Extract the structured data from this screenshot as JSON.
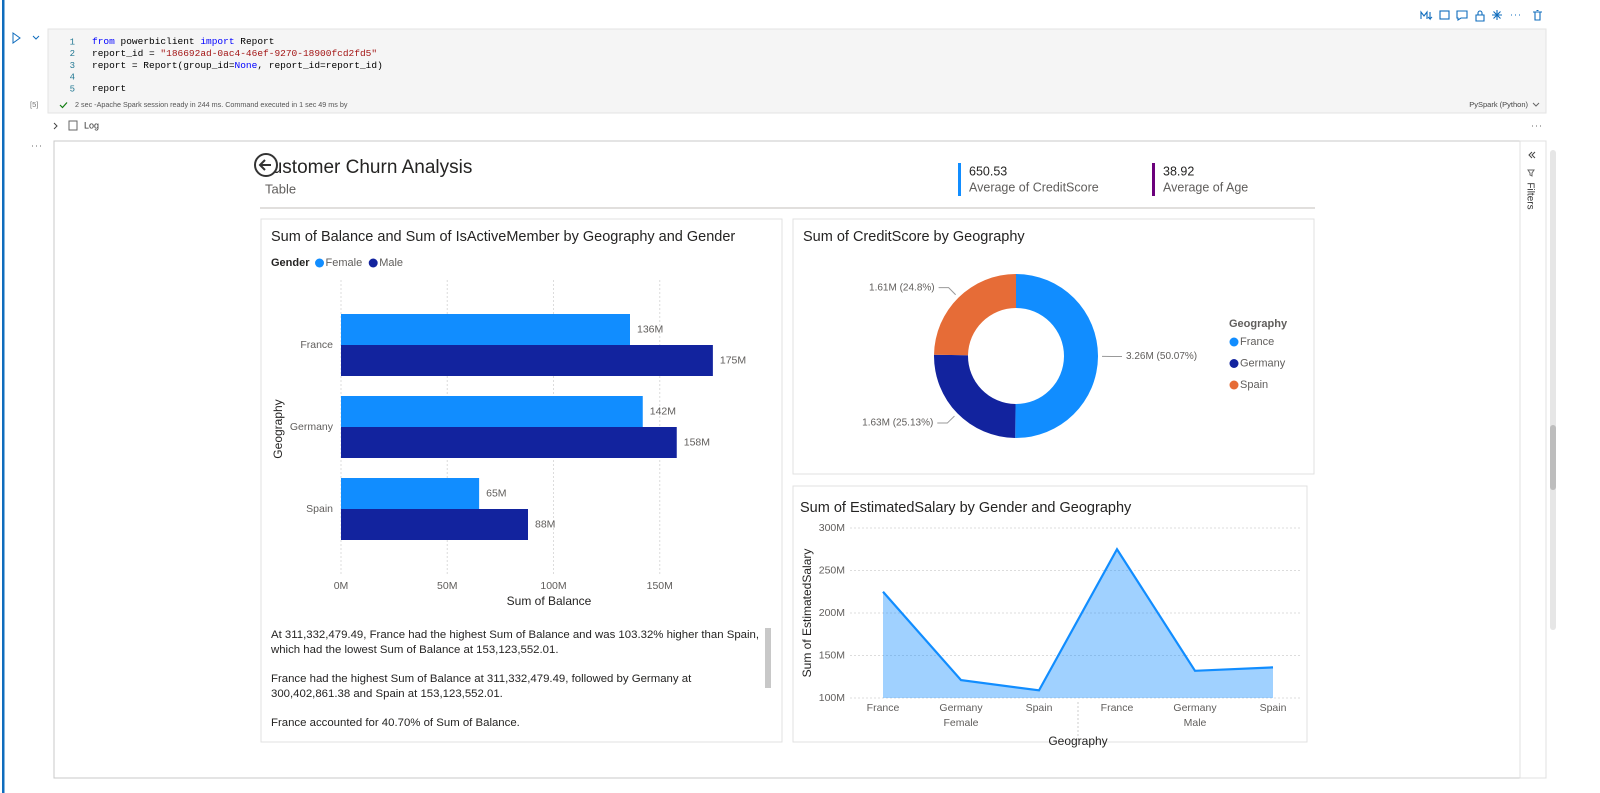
{
  "cell": {
    "execution_count": "[5]",
    "line_numbers": [
      1,
      2,
      3,
      4,
      5
    ],
    "code": [
      {
        "line": 1,
        "tokens": [
          {
            "text": "from",
            "color": "#0000ff"
          },
          {
            "text": " powerbiclient ",
            "color": "#000000"
          },
          {
            "text": "import",
            "color": "#0000ff"
          },
          {
            "text": " Report",
            "color": "#000000"
          }
        ]
      },
      {
        "line": 2,
        "tokens": [
          {
            "text": "report_id = ",
            "color": "#000000"
          },
          {
            "text": "\"186692ad-0ac4-46ef-9270-18900fcd2fd5\"",
            "color": "#a31515"
          }
        ]
      },
      {
        "line": 3,
        "tokens": [
          {
            "text": "report = Report(group_id=",
            "color": "#000000"
          },
          {
            "text": "None",
            "color": "#0000ff"
          },
          {
            "text": ", report_id=report_id)",
            "color": "#000000"
          }
        ]
      },
      {
        "line": 5,
        "tokens": [
          {
            "text": "report",
            "color": "#000000"
          }
        ]
      }
    ],
    "status": "2 sec -Apache Spark session ready in 244 ms. Command executed in 1 sec 49 ms by",
    "language": "PySpark (Python)",
    "log": "Log"
  },
  "report": {
    "title": "Customer Churn Analysis",
    "subtitle": "Table",
    "kpis": [
      {
        "value": 650.53,
        "label": "Average of CreditScore",
        "color": "#118DFF"
      },
      {
        "value": 38.92,
        "label": "Average of Age",
        "color": "#6B007B"
      }
    ],
    "filters": "Filters",
    "narrative": [
      "At 311,332,479.49, France had the highest Sum of Balance and was 103.32% higher than Spain, which had the lowest Sum of Balance at 153,123,552.01.",
      "France had the highest Sum of Balance at 311,332,479.49, followed by Germany at 300,402,861.38 and Spain at 153,123,552.01.",
      "France accounted for 40.70% of Sum of Balance."
    ]
  },
  "chart_data": [
    {
      "type": "bar",
      "orientation": "horizontal",
      "title": "Sum of Balance and Sum of IsActiveMember by Geography and Gender",
      "legend_title": "Gender",
      "categories": [
        "France",
        "Germany",
        "Spain"
      ],
      "series": [
        {
          "name": "Female",
          "color": "#118DFF",
          "values": [
            136,
            142,
            65
          ],
          "value_labels": [
            "136M",
            "142M",
            "65M"
          ]
        },
        {
          "name": "Male",
          "color": "#12239E",
          "values": [
            175,
            158,
            88
          ],
          "value_labels": [
            "175M",
            "158M",
            "88M"
          ]
        }
      ],
      "xlim": [
        0,
        200
      ],
      "xticks": [
        {
          "value": 0,
          "label": "0M"
        },
        {
          "value": 50,
          "label": "50M"
        },
        {
          "value": 100,
          "label": "100M"
        },
        {
          "value": 150,
          "label": "150M"
        }
      ],
      "xlabel": "Sum of Balance",
      "ylabel": "Geography",
      "grid": true
    },
    {
      "type": "donut",
      "title": "Sum of CreditScore by Geography",
      "legend_title": "Geography",
      "categories": [
        "France",
        "Germany",
        "Spain"
      ],
      "values": [
        3.26,
        1.63,
        1.61
      ],
      "value_labels": [
        "3.26M (50.07%)",
        "1.63M (25.13%)",
        "1.61M (24.8%)"
      ],
      "colors": [
        "#118DFF",
        "#12239E",
        "#E66C37"
      ]
    },
    {
      "type": "area",
      "title": "Sum of EstimatedSalary by Gender and Geography",
      "categories": [
        "France",
        "Germany",
        "Spain",
        "France",
        "Germany",
        "Spain"
      ],
      "groups": [
        "Female",
        "Male"
      ],
      "values": [
        225,
        121,
        109,
        275,
        132,
        136
      ],
      "color": "#118DFF",
      "ylim": [
        100,
        300
      ],
      "yticks": [
        {
          "value": 100,
          "label": "100M"
        },
        {
          "value": 150,
          "label": "150M"
        },
        {
          "value": 200,
          "label": "200M"
        },
        {
          "value": 250,
          "label": "250M"
        },
        {
          "value": 300,
          "label": "300M"
        }
      ],
      "xlabel": "Geography",
      "ylabel": "Sum of EstimatedSalary",
      "grid": true
    }
  ]
}
